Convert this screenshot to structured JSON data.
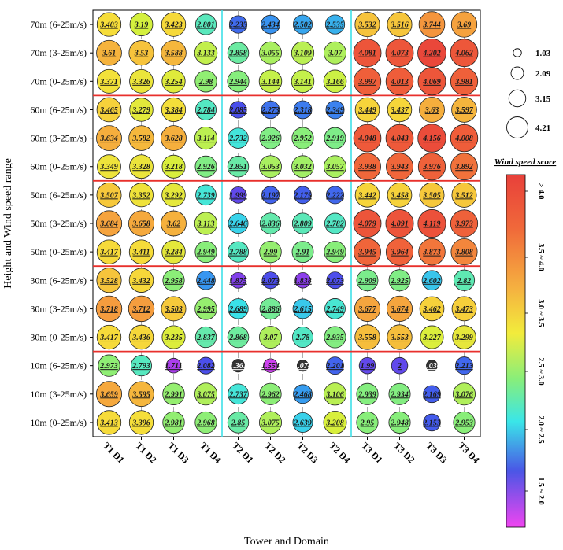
{
  "chart_data": {
    "type": "bubble-heatmap",
    "xlabel": "Tower and Domain",
    "ylabel": "Height and Wind speed range",
    "categories": [
      "T1 D1",
      "T1 D2",
      "T1 D3",
      "T1 D4",
      "T2 D1",
      "T2 D2",
      "T2 D3",
      "T2 D4",
      "T3 D1",
      "T3 D2",
      "T3 D3",
      "T3 D4"
    ],
    "rows": [
      {
        "label": "70m (6-25m/s)",
        "values": [
          "3.403",
          "3.19",
          "3.423",
          "2.801",
          "2.235",
          "2.434",
          "2.502",
          "2.535",
          "3.532",
          "3.516",
          "3.744",
          "3.69"
        ]
      },
      {
        "label": "70m (3-25m/s)",
        "values": [
          "3.61",
          "3.53",
          "3.588",
          "3.133",
          "2.858",
          "3.055",
          "3.109",
          "3.07",
          "4.081",
          "4.073",
          "4.202",
          "4.062"
        ]
      },
      {
        "label": "70m (0-25m/s)",
        "values": [
          "3.371",
          "3.326",
          "3.254",
          "2.98",
          "2.944",
          "3.144",
          "3.141",
          "3.166",
          "3.997",
          "4.013",
          "4.069",
          "3.981"
        ]
      },
      {
        "label": "60m (6-25m/s)",
        "values": [
          "3.465",
          "3.279",
          "3.384",
          "2.784",
          "2.085",
          "2.273",
          "2.318",
          "2.349",
          "3.449",
          "3.437",
          "3.63",
          "3.597"
        ]
      },
      {
        "label": "60m (3-25m/s)",
        "values": [
          "3.634",
          "3.582",
          "3.628",
          "3.114",
          "2.732",
          "2.926",
          "2.952",
          "2.919",
          "4.048",
          "4.043",
          "4.156",
          "4.008"
        ]
      },
      {
        "label": "60m (0-25m/s)",
        "values": [
          "3.349",
          "3.328",
          "3.218",
          "2.926",
          "2.851",
          "3.053",
          "3.032",
          "3.057",
          "3.938",
          "3.943",
          "3.976",
          "3.892"
        ]
      },
      {
        "label": "50m (6-25m/s)",
        "values": [
          "3.507",
          "3.352",
          "3.292",
          "2.739",
          "1.999",
          "2.197",
          "2.175",
          "2.222",
          "3.442",
          "3.458",
          "3.505",
          "3.512"
        ]
      },
      {
        "label": "50m (3-25m/s)",
        "values": [
          "3.684",
          "3.658",
          "3.62",
          "3.113",
          "2.646",
          "2.836",
          "2.809",
          "2.782",
          "4.079",
          "4.091",
          "4.119",
          "3.973"
        ]
      },
      {
        "label": "50m (0-25m/s)",
        "values": [
          "3.417",
          "3.411",
          "3.284",
          "2.949",
          "2.788",
          "2.99",
          "2.91",
          "2.949",
          "3.945",
          "3.964",
          "3.873",
          "3.808"
        ]
      },
      {
        "label": "30m (6-25m/s)",
        "values": [
          "3.528",
          "3.432",
          "2.958",
          "2.448",
          "1.875",
          "2.073",
          "1.838",
          "2.073",
          "2.909",
          "2.925",
          "2.602",
          "2.82"
        ]
      },
      {
        "label": "30m (3-25m/s)",
        "values": [
          "3.718",
          "3.712",
          "3.503",
          "2.995",
          "2.689",
          "2.886",
          "2.615",
          "2.749",
          "3.677",
          "3.674",
          "3.462",
          "3.473"
        ]
      },
      {
        "label": "30m (0-25m/s)",
        "values": [
          "3.417",
          "3.436",
          "3.235",
          "2.837",
          "2.868",
          "3.07",
          "2.78",
          "2.935",
          "3.558",
          "3.553",
          "3.227",
          "3.299"
        ]
      },
      {
        "label": "10m (6-25m/s)",
        "values": [
          "2.973",
          "2.793",
          "1.711",
          "2.082",
          "1.361",
          "1.554",
          "1.074",
          "2.201",
          "1.99",
          "2",
          "1.036",
          "2.213"
        ]
      },
      {
        "label": "10m (3-25m/s)",
        "values": [
          "3.659",
          "3.595",
          "2.991",
          "3.075",
          "2.737",
          "2.962",
          "2.468",
          "3.106",
          "2.939",
          "2.934",
          "2.169",
          "3.076"
        ]
      },
      {
        "label": "10m (0-25m/s)",
        "values": [
          "3.413",
          "3.396",
          "2.981",
          "2.968",
          "2.85",
          "3.075",
          "2.639",
          "3.208",
          "2.95",
          "2.948",
          "2.153",
          "2.953"
        ]
      }
    ],
    "size_legend": [
      "1.03",
      "2.09",
      "3.15",
      "4.21"
    ],
    "colorbar": {
      "title": "Wind speed score",
      "labels": [
        "> 4.0",
        "3.5 ~ 4.0",
        "3.0 ~ 3.5",
        "2.5 ~ 3.0",
        "2.0 ~ 2.5",
        "1.5 ~ 2.0"
      ]
    },
    "group_dividers": "red lines between height groups",
    "tower_dividers": "cyan lines between towers"
  }
}
